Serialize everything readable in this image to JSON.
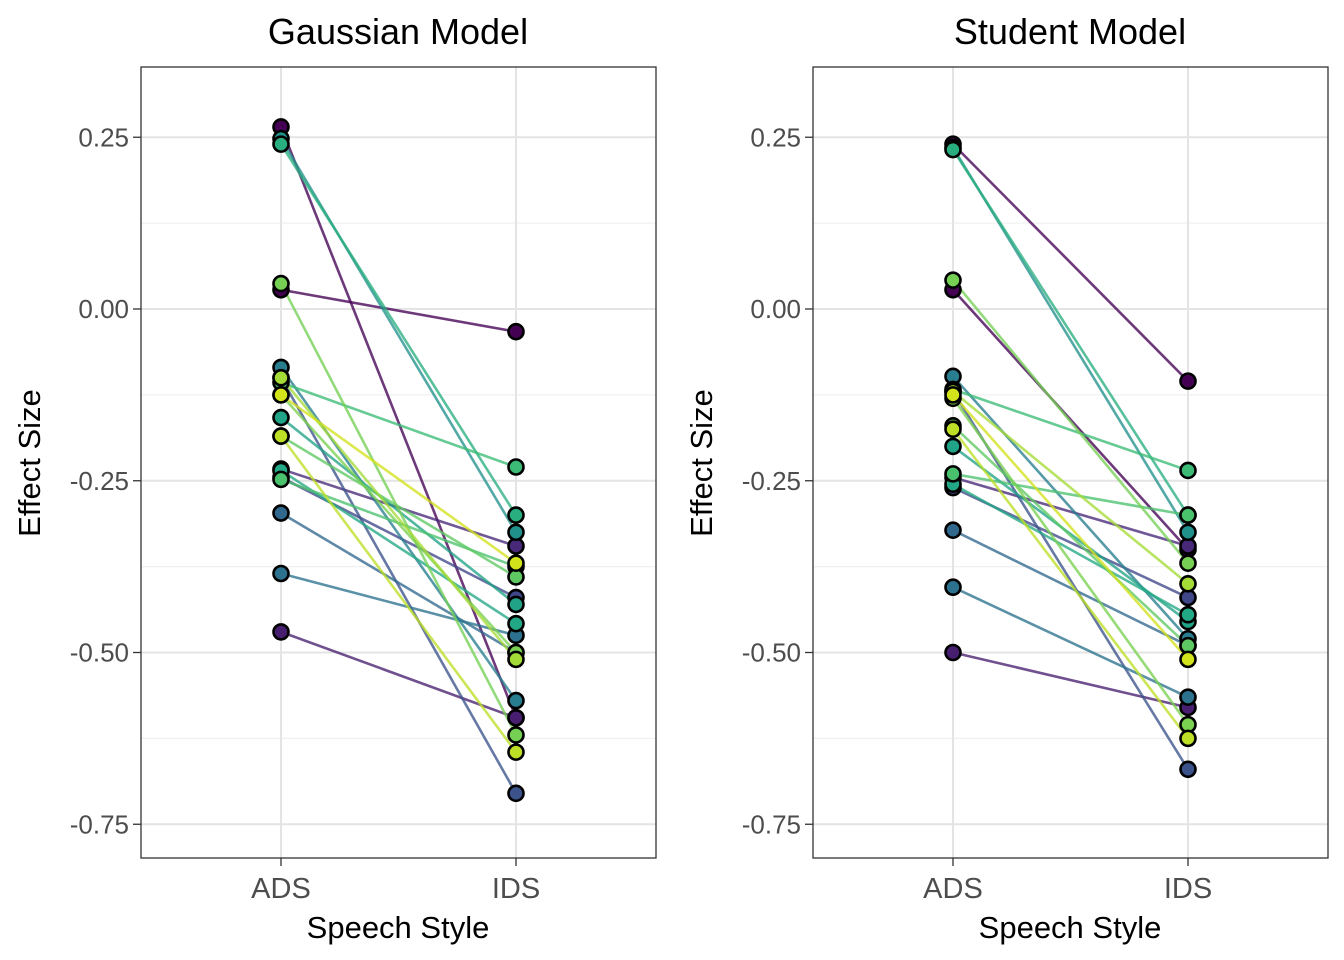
{
  "chart_data": [
    {
      "type": "line",
      "title": "Gaussian Model",
      "xlabel": "Speech Style",
      "ylabel": "Effect Size",
      "categories": [
        "ADS",
        "IDS"
      ],
      "ylim": [
        -0.8,
        0.35
      ],
      "yticks": [
        0.25,
        0.0,
        -0.25,
        -0.5,
        -0.75
      ],
      "ytick_labels": [
        "0.25",
        "0.00",
        "-0.25",
        "-0.50",
        "-0.75"
      ],
      "grid": true,
      "color_scale": "viridis",
      "series": [
        {
          "values": [
            0.265,
            -0.595
          ],
          "color": "#440154"
        },
        {
          "values": [
            0.028,
            -0.033
          ],
          "color": "#440154"
        },
        {
          "values": [
            -0.47,
            -0.595
          ],
          "color": "#481f70"
        },
        {
          "values": [
            -0.233,
            -0.345
          ],
          "color": "#482878"
        },
        {
          "values": [
            -0.245,
            -0.42
          ],
          "color": "#3f4788"
        },
        {
          "values": [
            -0.1,
            -0.705
          ],
          "color": "#3b528b"
        },
        {
          "values": [
            -0.297,
            -0.5
          ],
          "color": "#31688e"
        },
        {
          "values": [
            -0.385,
            -0.475
          ],
          "color": "#2c728e"
        },
        {
          "values": [
            -0.085,
            -0.57
          ],
          "color": "#287d8e"
        },
        {
          "values": [
            0.248,
            -0.325
          ],
          "color": "#21918c"
        },
        {
          "values": [
            -0.158,
            -0.43
          ],
          "color": "#20a386"
        },
        {
          "values": [
            -0.235,
            -0.458
          ],
          "color": "#22a884"
        },
        {
          "values": [
            0.24,
            -0.3
          ],
          "color": "#29af7f"
        },
        {
          "values": [
            -0.107,
            -0.23
          ],
          "color": "#3bbb75"
        },
        {
          "values": [
            -0.248,
            -0.375
          ],
          "color": "#4ac16d"
        },
        {
          "values": [
            -0.185,
            -0.39
          ],
          "color": "#5ec962"
        },
        {
          "values": [
            0.037,
            -0.62
          ],
          "color": "#75d054"
        },
        {
          "values": [
            -0.125,
            -0.5
          ],
          "color": "#7ad151"
        },
        {
          "values": [
            -0.1,
            -0.51
          ],
          "color": "#a5db36"
        },
        {
          "values": [
            -0.185,
            -0.645
          ],
          "color": "#bddf26"
        },
        {
          "values": [
            -0.125,
            -0.37
          ],
          "color": "#d2e21b"
        }
      ]
    },
    {
      "type": "line",
      "title": "Student Model",
      "xlabel": "Speech Style",
      "ylabel": "Effect Size",
      "categories": [
        "ADS",
        "IDS"
      ],
      "ylim": [
        -0.8,
        0.35
      ],
      "yticks": [
        0.25,
        0.0,
        -0.25,
        -0.5,
        -0.75
      ],
      "ytick_labels": [
        "0.25",
        "0.00",
        "-0.25",
        "-0.50",
        "-0.75"
      ],
      "grid": true,
      "color_scale": "viridis",
      "series": [
        {
          "values": [
            0.24,
            -0.105
          ],
          "color": "#440154"
        },
        {
          "values": [
            0.028,
            -0.35
          ],
          "color": "#440154"
        },
        {
          "values": [
            -0.5,
            -0.58
          ],
          "color": "#481f70"
        },
        {
          "values": [
            -0.245,
            -0.345
          ],
          "color": "#482878"
        },
        {
          "values": [
            -0.26,
            -0.42
          ],
          "color": "#3f4788"
        },
        {
          "values": [
            -0.12,
            -0.67
          ],
          "color": "#3b528b"
        },
        {
          "values": [
            -0.322,
            -0.49
          ],
          "color": "#31688e"
        },
        {
          "values": [
            -0.405,
            -0.565
          ],
          "color": "#2c728e"
        },
        {
          "values": [
            -0.098,
            -0.48
          ],
          "color": "#287d8e"
        },
        {
          "values": [
            0.235,
            -0.325
          ],
          "color": "#21918c"
        },
        {
          "values": [
            -0.2,
            -0.455
          ],
          "color": "#20a386"
        },
        {
          "values": [
            -0.255,
            -0.445
          ],
          "color": "#22a884"
        },
        {
          "values": [
            0.232,
            -0.3
          ],
          "color": "#29af7f"
        },
        {
          "values": [
            -0.117,
            -0.235
          ],
          "color": "#3bbb75"
        },
        {
          "values": [
            -0.24,
            -0.3
          ],
          "color": "#4ac16d"
        },
        {
          "values": [
            -0.17,
            -0.49
          ],
          "color": "#5ec962"
        },
        {
          "values": [
            0.042,
            -0.37
          ],
          "color": "#75d054"
        },
        {
          "values": [
            -0.13,
            -0.605
          ],
          "color": "#7ad151"
        },
        {
          "values": [
            -0.12,
            -0.4
          ],
          "color": "#a5db36"
        },
        {
          "values": [
            -0.175,
            -0.625
          ],
          "color": "#bddf26"
        },
        {
          "values": [
            -0.125,
            -0.51
          ],
          "color": "#d2e21b"
        }
      ]
    }
  ]
}
